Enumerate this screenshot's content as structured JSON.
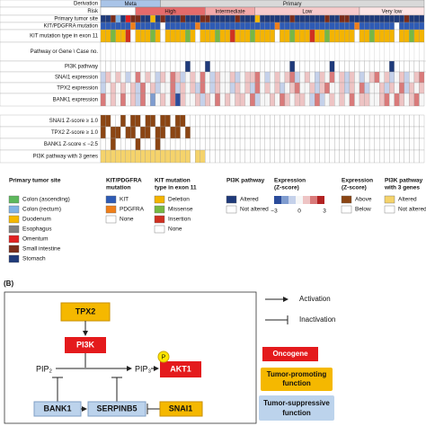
{
  "heatmap": {
    "upper_rows": [
      {
        "label": "Derivation",
        "segments": [
          {
            "label": "Meta",
            "count": 12,
            "color": "#a9c4e8"
          },
          {
            "label": "Primary",
            "count": 53,
            "color": "#d9d9d9"
          }
        ]
      },
      {
        "label": "Risk",
        "segments": [
          {
            "label": null,
            "count": 7,
            "color": "#ffffff"
          },
          {
            "label": "High",
            "count": 14,
            "color": "#e56b6b"
          },
          {
            "label": "Intermediate",
            "count": 10,
            "color": "#f3a9a9"
          },
          {
            "label": "Low",
            "count": 21,
            "color": "#f8cccc"
          },
          {
            "label": "Very low",
            "count": 13,
            "color": "#fde6e6"
          }
        ]
      },
      {
        "label": "Primary tumor site",
        "cells": "SSIRSOIISSDSISSSISSSIISSSSSISSSDSSSSSSISSSSSSISSIISSSSSSSSSSSISSS",
        "palette": "site"
      },
      {
        "label": "KIT/PDGFRA mutation",
        "cells": "KKKKKKPKKKKKNKKKKKKPKKKKKKKKKKKKKKKPKKKKKKKKKKKKKKKPKKKKKKKNKKKKK",
        "palette": "mutation"
      },
      {
        "label": "KIT mutation type in exon 11",
        "cells": "DDMDDINDDDMDNDDDDMDNDDDMDDIDDDMDDDDNDDMDDDIDDMDDDDDNDDMDDDDNDDMDD",
        "palette": "type"
      },
      {
        "label": "Pathway or Gene \\ Case no."
      },
      {
        "label": "PI3K pathway",
        "cells": "NNNNNNNNNNNNNNNNNXNNNXNNNNNNNNNNNNNNNNXNNNNNNNXNNNNNNNNNNNXNNNNNNN",
        "palette": "binary"
      },
      {
        "label": "SNAI1 expression",
        "cells": "24343235343243542343532433423445323434523432435342432345342342345",
        "palette": "expression"
      },
      {
        "label": "TPX2 expression",
        "cells": "23434342534233524342532433243425343423453342453342435233424352434",
        "palette": "expression"
      },
      {
        "label": "BANK1 expression",
        "cells": "53435342531343504334243534344352334354344325234343534433453543453",
        "palette": "expression"
      }
    ],
    "lower_rows": [
      {
        "label": "SNAI1 Z-score ≥ 1.0",
        "cells": "YYNNYNYYNYYNYYNYYNNNNNNNNNNNNNNNNNNNNNNNNNNNNNNNNNNNNNNNNNNNNNNNN",
        "palette": "brown"
      },
      {
        "label": "TPX2 Z-score ≥ 1.0",
        "cells": "YNYYNYYNYYNYYNYYNYNNNNNNNNNNNNNNNNNNNNNNNNNNNNNNNNNNNNNNNNNNNNNNN",
        "palette": "brown"
      },
      {
        "label": "BANK1 Z-score ≤ −2.5",
        "cells": "NNYNNNNYNNNYNNNNNNNNNNNNNNNNNNNNNNNNNNNNNNNNNNNNNNNNNNNNNNNNNNNNN",
        "palette": "brown"
      },
      {
        "label": "PI3K pathway with 3 genes",
        "cells": "YYYYYYYYYYYYYYYYYYNYYNNNNNNNNNNNNNNNNNNNNNNNNNNNNNNNNNNNNNNNNNNNN",
        "palette": "yellow"
      }
    ],
    "palettes": {
      "site": {
        "A": "#5db85c",
        "R": "#7fb2e5",
        "D": "#f5b800",
        "E": "#808080",
        "O": "#e02020",
        "I": "#7b2c1a",
        "S": "#1f3a7a"
      },
      "mutation": {
        "K": "#2e5bb5",
        "P": "#f07f1a",
        "N": "#ffffff"
      },
      "type": {
        "D": "#f4b400",
        "M": "#77b843",
        "I": "#d03020",
        "N": "#ffffff"
      },
      "binary": {
        "X": "#1f3a7a",
        "N": "#ffffff"
      },
      "expression": {
        "0": "#2b4c9b",
        "1": "#7f9ccf",
        "2": "#c5d1ea",
        "3": "#f6f6f6",
        "4": "#eec4c4",
        "5": "#d97a7a",
        "6": "#b22222"
      },
      "brown": {
        "Y": "#8b4513",
        "N": "#ffffff"
      },
      "yellow": {
        "Y": "#f5d36b",
        "N": "#ffffff"
      }
    }
  },
  "legend": [
    {
      "title": [
        "Primary tumor site"
      ],
      "items": [
        {
          "label": "Colon (ascending)",
          "color": "#5db85c"
        },
        {
          "label": "Colon (rectum)",
          "color": "#7fb2e5"
        },
        {
          "label": "Duodenum",
          "color": "#f5b800"
        },
        {
          "label": "Esophagus",
          "color": "#808080"
        },
        {
          "label": "Omentum",
          "color": "#e02020"
        },
        {
          "label": "Small intestine",
          "color": "#7b2c1a"
        },
        {
          "label": "Stomach",
          "color": "#1f3a7a"
        }
      ]
    },
    {
      "title": [
        "KIT/PDGFRA",
        "mutation"
      ],
      "items": [
        {
          "label": "KIT",
          "color": "#2e5bb5"
        },
        {
          "label": "PDGFRA",
          "color": "#f07f1a"
        },
        {
          "label": "None",
          "color": "#ffffff"
        }
      ]
    },
    {
      "title": [
        "KIT mutation",
        "type in exon 11"
      ],
      "items": [
        {
          "label": "Deletion",
          "color": "#f4b400"
        },
        {
          "label": "Missense",
          "color": "#77b843"
        },
        {
          "label": "Insertion",
          "color": "#d03020"
        },
        {
          "label": "None",
          "color": "#ffffff"
        }
      ]
    },
    {
      "title": [
        "PI3K pathway"
      ],
      "items": [
        {
          "label": "Altered",
          "color": "#1f3a7a"
        },
        {
          "label": "Not altered",
          "color": "#ffffff"
        }
      ]
    },
    {
      "title": [
        "Expression",
        "(Z-score)"
      ],
      "gradient": [
        "−3",
        "0",
        "3"
      ]
    },
    {
      "title": [
        "Expression",
        "(Z-score)"
      ],
      "items": [
        {
          "label": "Above",
          "color": "#8b4513"
        },
        {
          "label": "Below",
          "color": "#ffffff"
        }
      ]
    },
    {
      "title": [
        "PI3K pathway",
        "with 3 genes"
      ],
      "items": [
        {
          "label": "Altered",
          "color": "#f5d36b"
        },
        {
          "label": "Not altered",
          "color": "#ffffff"
        }
      ]
    }
  ],
  "panel_b": {
    "label": "(B)",
    "nodes": {
      "tpx2": "TPX2",
      "pi3k": "PI3K",
      "pip2": "PIP₂",
      "pip3": "PIP₃",
      "p": "P",
      "akt1": "AKT1",
      "bank1": "BANK1",
      "serpinb5": "SERPINB5",
      "snai1": "SNAI1"
    },
    "key": {
      "activation": "Activation",
      "inactivation": "Inactivation",
      "oncogene": "Oncogene",
      "promoting": [
        "Tumor-promoting",
        "function"
      ],
      "suppressive": [
        "Tumor-suppressive",
        "function"
      ]
    }
  }
}
